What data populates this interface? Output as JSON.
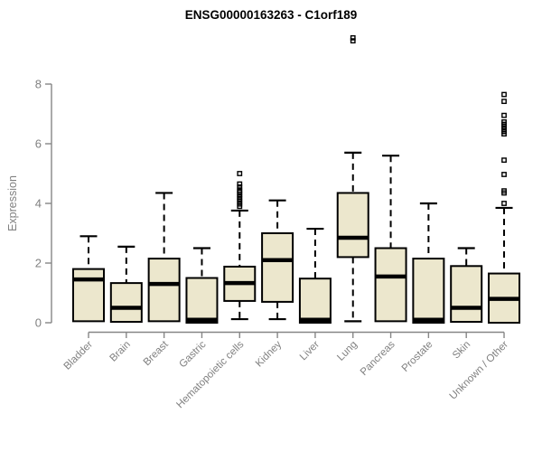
{
  "chart_data": {
    "type": "boxplot",
    "title": "ENSG00000163263 - C1orf189",
    "ylabel": "Expression",
    "xlabel": "",
    "ylim": [
      0,
      8
    ],
    "yticks": [
      0,
      2,
      4,
      6,
      8
    ],
    "grid": false,
    "legend": "none",
    "categories": [
      "Bladder",
      "Brain",
      "Breast",
      "Gastric",
      "Hematopoietic cells",
      "Kidney",
      "Liver",
      "Lung",
      "Pancreas",
      "Prostate",
      "Skin",
      "Unknown / Other"
    ],
    "series": [
      {
        "name": "Bladder",
        "whisker_low": 0.05,
        "q1": 0.05,
        "median": 1.45,
        "q3": 1.8,
        "whisker_high": 2.9,
        "outliers": []
      },
      {
        "name": "Brain",
        "whisker_low": 0.03,
        "q1": 0.03,
        "median": 0.5,
        "q3": 1.33,
        "whisker_high": 2.55,
        "outliers": []
      },
      {
        "name": "Breast",
        "whisker_low": 0.05,
        "q1": 0.05,
        "median": 1.3,
        "q3": 2.15,
        "whisker_high": 4.35,
        "outliers": []
      },
      {
        "name": "Gastric",
        "whisker_low": 0.0,
        "q1": 0.0,
        "median": 0.1,
        "q3": 1.5,
        "whisker_high": 2.5,
        "outliers": []
      },
      {
        "name": "Hematopoietic cells",
        "whisker_low": 0.12,
        "q1": 0.73,
        "median": 1.33,
        "q3": 1.88,
        "whisker_high": 3.76,
        "outliers": [
          5.0,
          4.65,
          4.55,
          4.45,
          4.38,
          4.3,
          4.22,
          4.14,
          4.06,
          3.98,
          3.9
        ]
      },
      {
        "name": "Kidney",
        "whisker_low": 0.12,
        "q1": 0.7,
        "median": 2.1,
        "q3": 3.0,
        "whisker_high": 4.1,
        "outliers": []
      },
      {
        "name": "Liver",
        "whisker_low": 0.0,
        "q1": 0.0,
        "median": 0.1,
        "q3": 1.48,
        "whisker_high": 3.15,
        "outliers": []
      },
      {
        "name": "Lung",
        "whisker_low": 0.05,
        "q1": 2.2,
        "median": 2.85,
        "q3": 4.35,
        "whisker_high": 5.7,
        "outliers": [
          9.45,
          9.55
        ]
      },
      {
        "name": "Pancreas",
        "whisker_low": 0.05,
        "q1": 0.05,
        "median": 1.55,
        "q3": 2.5,
        "whisker_high": 5.6,
        "outliers": []
      },
      {
        "name": "Prostate",
        "whisker_low": 0.0,
        "q1": 0.0,
        "median": 0.1,
        "q3": 2.15,
        "whisker_high": 4.0,
        "outliers": []
      },
      {
        "name": "Skin",
        "whisker_low": 0.03,
        "q1": 0.03,
        "median": 0.5,
        "q3": 1.9,
        "whisker_high": 2.5,
        "outliers": []
      },
      {
        "name": "Unknown / Other",
        "whisker_low": 0.0,
        "q1": 0.0,
        "median": 0.8,
        "q3": 1.65,
        "whisker_high": 3.85,
        "outliers": [
          7.65,
          7.42,
          6.95,
          6.73,
          6.65,
          6.57,
          6.49,
          6.41,
          6.33,
          5.45,
          4.97,
          4.42,
          4.35,
          4.0
        ]
      }
    ],
    "colors": {
      "box_fill": "#ece7cd",
      "box_stroke": "#000000",
      "median": "#000000",
      "whisker": "#000000",
      "outlier": "#000000",
      "axis": "#868686",
      "tick_label": "#808080",
      "title": "#000000"
    }
  }
}
